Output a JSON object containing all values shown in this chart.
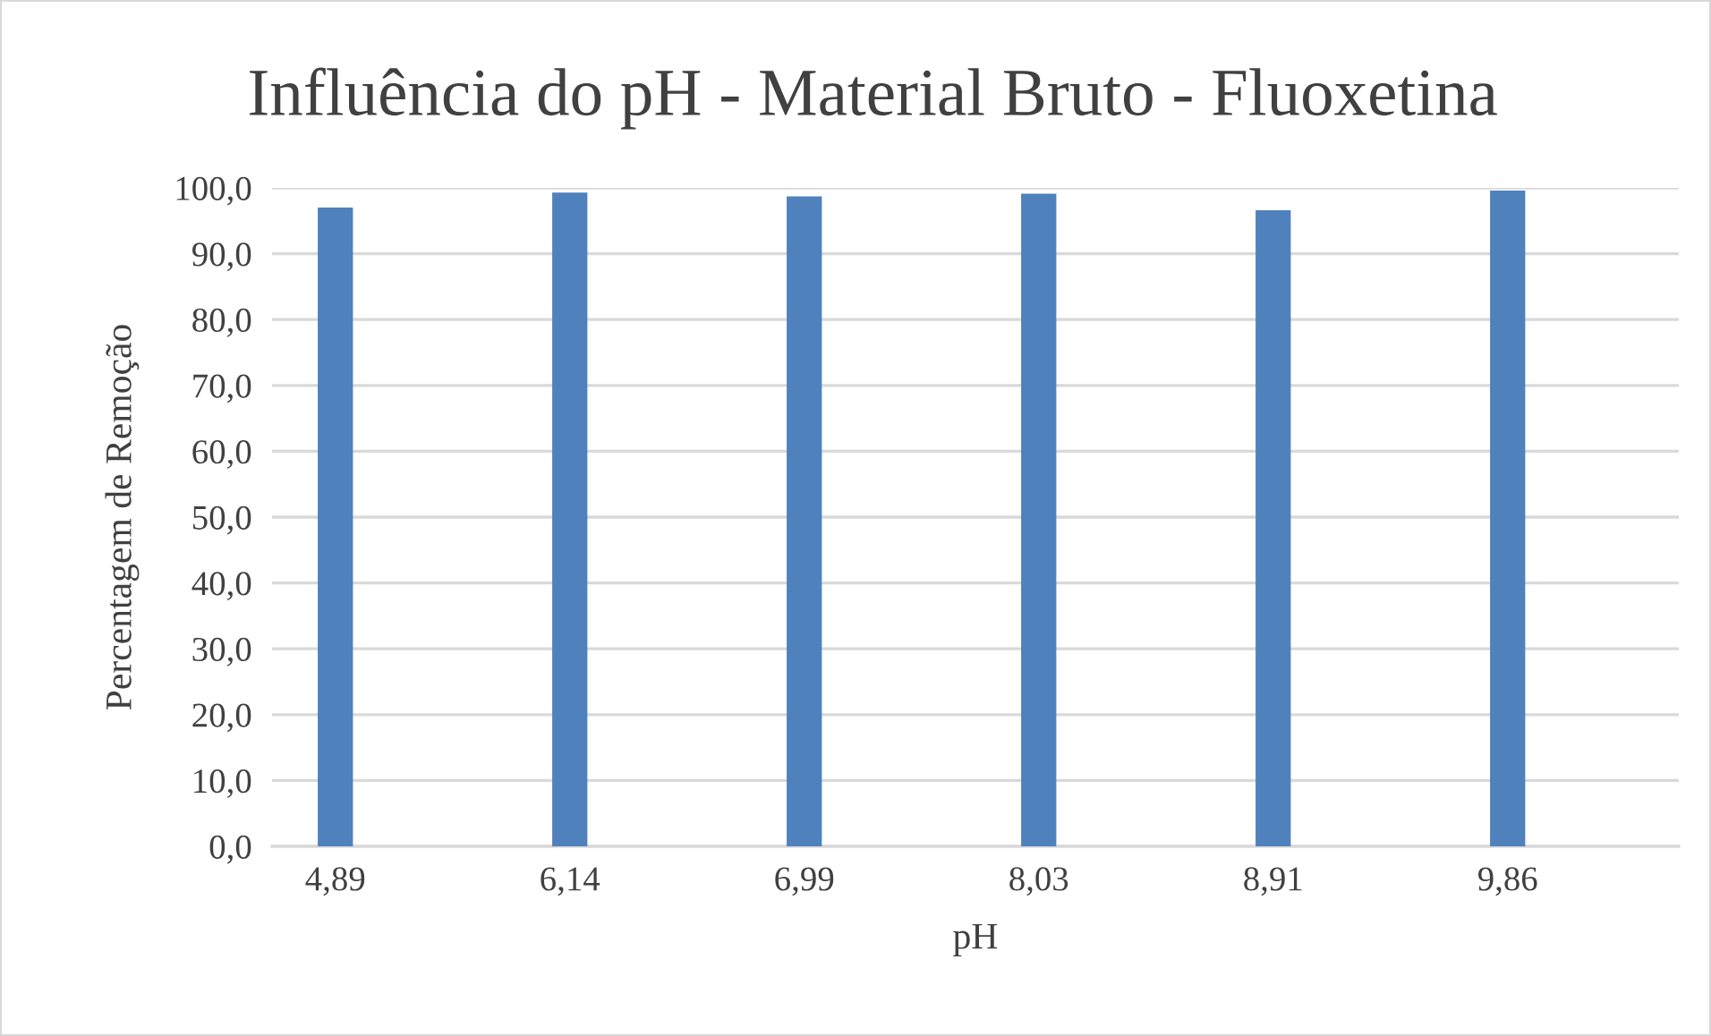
{
  "chart_data": {
    "type": "bar",
    "title": "Influência do pH - Material Bruto - Fluoxetina",
    "xlabel": "pH",
    "ylabel": "Percentagem de Remoção",
    "categories": [
      "4,89",
      "6,14",
      "6,99",
      "8,03",
      "8,91",
      "9,86"
    ],
    "series": [
      {
        "color": "#4f81bd",
        "values": [
          97.0,
          99.3,
          98.7,
          99.1,
          96.6,
          99.6
        ]
      }
    ],
    "ylim": [
      0,
      100
    ],
    "yticks": [
      {
        "value": 0,
        "label": "0,0"
      },
      {
        "value": 10,
        "label": "10,0"
      },
      {
        "value": 20,
        "label": "20,0"
      },
      {
        "value": 30,
        "label": "30,0"
      },
      {
        "value": 40,
        "label": "40,0"
      },
      {
        "value": 50,
        "label": "50,0"
      },
      {
        "value": 60,
        "label": "60,0"
      },
      {
        "value": 70,
        "label": "70,0"
      },
      {
        "value": 80,
        "label": "80,0"
      },
      {
        "value": 90,
        "label": "90,0"
      },
      {
        "value": 100,
        "label": "100,0"
      }
    ],
    "grid": "y"
  }
}
